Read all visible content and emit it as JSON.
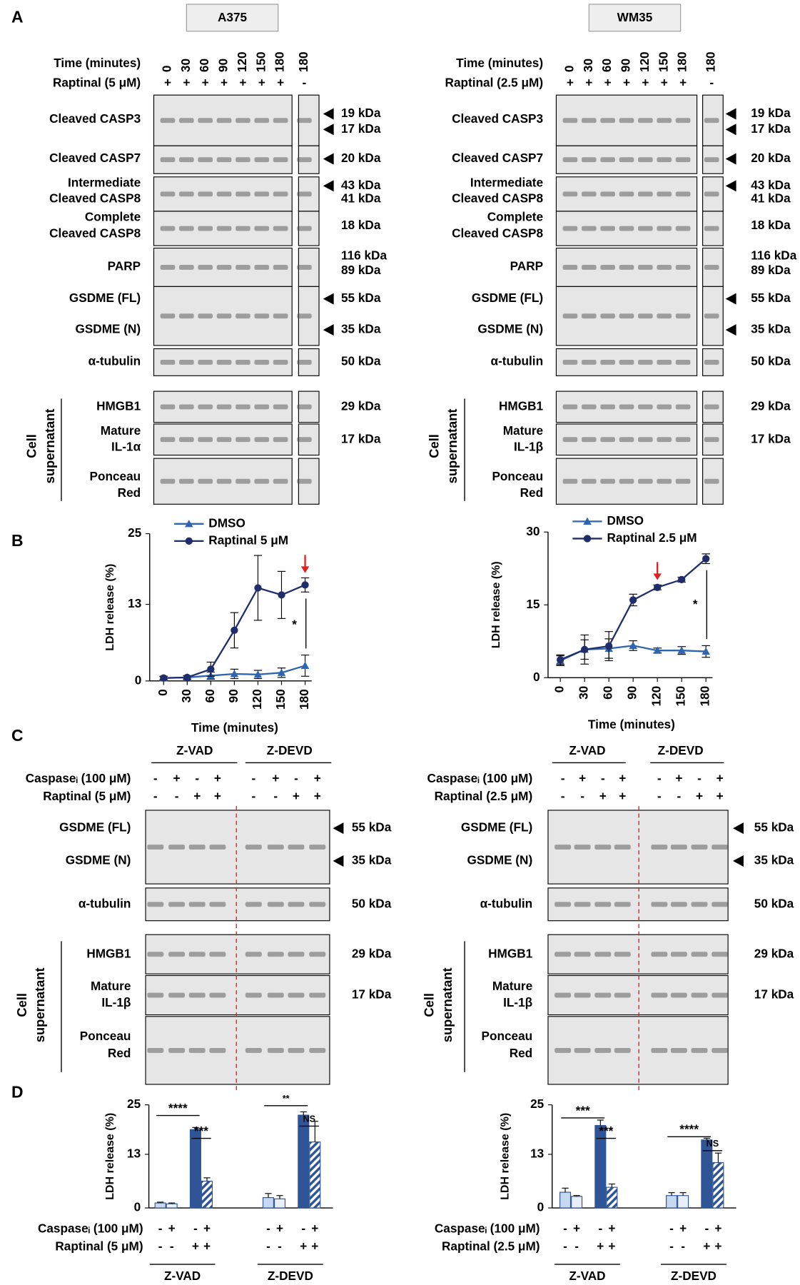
{
  "panel_labels": [
    "A",
    "B",
    "C",
    "D"
  ],
  "panel_a": [
    {
      "cell_line": "A375",
      "time_label": "Time (minutes)",
      "times": [
        "0",
        "30",
        "60",
        "90",
        "120",
        "150",
        "180",
        "180"
      ],
      "treatment_label": "Raptinal (5 μM)",
      "treatment": [
        "+",
        "+",
        "+",
        "+",
        "+",
        "+",
        "+",
        "-"
      ],
      "rows": [
        {
          "name": [
            "Cleaved CASP3"
          ],
          "kda": [
            "19 kDa",
            "17 kDa"
          ]
        },
        {
          "name": [
            "Cleaved CASP7"
          ],
          "kda": [
            "20 kDa"
          ]
        },
        {
          "name": [
            "Intermediate",
            "Cleaved CASP8"
          ],
          "kda": [
            "43 kDa",
            "41 kDa"
          ]
        },
        {
          "name": [
            "Complete",
            "Cleaved CASP8"
          ],
          "kda": [
            "18 kDa"
          ]
        },
        {
          "name": [
            "PARP"
          ],
          "kda": [
            "116 kDa",
            "89 kDa"
          ]
        },
        {
          "name": [
            "GSDME (FL)"
          ],
          "kda": [
            "55 kDa"
          ]
        },
        {
          "name": [
            "GSDME (N)"
          ],
          "kda": [
            "35 kDa"
          ]
        },
        {
          "name": [
            "α-tubulin"
          ],
          "kda": [
            "50 kDa"
          ]
        }
      ],
      "supernatant_label": [
        "Cell",
        "supernatant"
      ],
      "supernatant_rows": [
        {
          "name": [
            "HMGB1"
          ],
          "kda": [
            "29 kDa"
          ]
        },
        {
          "name": [
            "Mature",
            "IL-1α"
          ],
          "kda": [
            "17 kDa"
          ]
        },
        {
          "name": [
            "Ponceau",
            "Red"
          ]
        }
      ]
    },
    {
      "cell_line": "WM35",
      "time_label": "Time (minutes)",
      "times": [
        "0",
        "30",
        "60",
        "90",
        "120",
        "150",
        "180",
        "180"
      ],
      "treatment_label": "Raptinal (2.5 μM)",
      "treatment": [
        "+",
        "+",
        "+",
        "+",
        "+",
        "+",
        "+",
        "-"
      ],
      "rows": [
        {
          "name": [
            "Cleaved CASP3"
          ],
          "kda": [
            "19 kDa",
            "17 kDa"
          ]
        },
        {
          "name": [
            "Cleaved CASP7"
          ],
          "kda": [
            "20 kDa"
          ]
        },
        {
          "name": [
            "Intermediate",
            "Cleaved CASP8"
          ],
          "kda": [
            "43 kDa",
            "41 kDa"
          ]
        },
        {
          "name": [
            "Complete",
            "Cleaved CASP8"
          ],
          "kda": [
            "18 kDa"
          ]
        },
        {
          "name": [
            "PARP"
          ],
          "kda": [
            "116 kDa",
            "89 kDa"
          ]
        },
        {
          "name": [
            "GSDME (FL)"
          ],
          "kda": [
            "55 kDa"
          ]
        },
        {
          "name": [
            "GSDME (N)"
          ],
          "kda": [
            "35 kDa"
          ]
        },
        {
          "name": [
            "α-tubulin"
          ],
          "kda": [
            "50 kDa"
          ]
        }
      ],
      "supernatant_label": [
        "Cell",
        "supernatant"
      ],
      "supernatant_rows": [
        {
          "name": [
            "HMGB1"
          ],
          "kda": [
            "29 kDa"
          ]
        },
        {
          "name": [
            "Mature",
            "IL-1β"
          ],
          "kda": [
            "17 kDa"
          ]
        },
        {
          "name": [
            "Ponceau",
            "Red"
          ]
        }
      ]
    }
  ],
  "panel_c": [
    {
      "headers": [
        "Z-VAD",
        "Z-DEVD"
      ],
      "caspase_label": "Caspaseᵢ (100 μM)",
      "caspase": [
        "-",
        "+",
        "-",
        "+",
        "-",
        "+",
        "-",
        "+"
      ],
      "raptinal_label": "Raptinal (5 μM)",
      "raptinal": [
        "-",
        "-",
        "+",
        "+",
        "-",
        "-",
        "+",
        "+"
      ],
      "rows": [
        {
          "name": [
            "GSDME (FL)"
          ],
          "kda": [
            "55 kDa"
          ]
        },
        {
          "name": [
            "GSDME (N)"
          ],
          "kda": [
            "35 kDa"
          ]
        },
        {
          "name": [
            "α-tubulin"
          ],
          "kda": [
            "50 kDa"
          ]
        }
      ],
      "supernatant_label": [
        "Cell",
        "supernatant"
      ],
      "supernatant_rows": [
        {
          "name": [
            "HMGB1"
          ],
          "kda": [
            "29 kDa"
          ]
        },
        {
          "name": [
            "Mature",
            "IL-1β"
          ],
          "kda": [
            "17 kDa"
          ]
        },
        {
          "name": [
            "Ponceau",
            "Red"
          ]
        }
      ]
    },
    {
      "headers": [
        "Z-VAD",
        "Z-DEVD"
      ],
      "caspase_label": "Caspaseᵢ (100 μM)",
      "caspase": [
        "-",
        "+",
        "-",
        "+",
        "-",
        "+",
        "-",
        "+"
      ],
      "raptinal_label": "Raptinal (2.5 μM)",
      "raptinal": [
        "-",
        "-",
        "+",
        "+",
        "-",
        "-",
        "+",
        "+"
      ],
      "rows": [
        {
          "name": [
            "GSDME (FL)"
          ],
          "kda": [
            "55 kDa"
          ]
        },
        {
          "name": [
            "GSDME (N)"
          ],
          "kda": [
            "35 kDa"
          ]
        },
        {
          "name": [
            "α-tubulin"
          ],
          "kda": [
            "50 kDa"
          ]
        }
      ],
      "supernatant_label": [
        "Cell",
        "supernatant"
      ],
      "supernatant_rows": [
        {
          "name": [
            "HMGB1"
          ],
          "kda": [
            "29 kDa"
          ]
        },
        {
          "name": [
            "Mature",
            "IL-1β"
          ],
          "kda": [
            "17 kDa"
          ]
        },
        {
          "name": [
            "Ponceau",
            "Red"
          ]
        }
      ]
    }
  ],
  "chart_data": [
    {
      "type": "line",
      "xlabel": "Time (minutes)",
      "ylabel": "LDH release (%)",
      "x": [
        0,
        30,
        60,
        90,
        120,
        150,
        180
      ],
      "xlim": [
        0,
        180
      ],
      "xticks": [
        0,
        30,
        60,
        90,
        120,
        150,
        180
      ],
      "ylim": [
        0,
        25
      ],
      "yticks": [
        0,
        13,
        25
      ],
      "series": [
        {
          "name": "DMSO",
          "color": "#2e64b0",
          "marker": "triangle",
          "values": [
            0.5,
            0.6,
            0.9,
            1.2,
            1.1,
            1.4,
            2.6
          ],
          "errors": [
            0.3,
            0.3,
            0.6,
            0.8,
            0.7,
            0.8,
            1.8
          ]
        },
        {
          "name": "Raptinal 5 μM",
          "color": "#1f2d6b",
          "marker": "circle",
          "values": [
            0.5,
            0.6,
            2,
            8.6,
            15.8,
            14.6,
            16.3
          ],
          "errors": [
            0.3,
            0.3,
            1.2,
            3,
            5.5,
            4,
            1.2
          ]
        }
      ],
      "annotations": [
        "*"
      ]
    },
    {
      "type": "line",
      "xlabel": "Time (minutes)",
      "ylabel": "LDH release (%)",
      "x": [
        0,
        30,
        60,
        90,
        120,
        150,
        180
      ],
      "xlim": [
        0,
        180
      ],
      "xticks": [
        0,
        30,
        60,
        90,
        120,
        150,
        180
      ],
      "ylim": [
        0,
        30
      ],
      "yticks": [
        0,
        15,
        30
      ],
      "series": [
        {
          "name": "DMSO",
          "color": "#2e64b0",
          "marker": "triangle",
          "values": [
            3.5,
            5.8,
            6,
            6.6,
            5.6,
            5.6,
            5.4
          ],
          "errors": [
            1,
            2,
            2,
            1,
            0.5,
            0.8,
            1.2
          ]
        },
        {
          "name": "Raptinal 2.5 μM",
          "color": "#1f2d6b",
          "marker": "circle",
          "values": [
            3.7,
            5.8,
            6.5,
            16,
            18.6,
            20.2,
            24.5
          ],
          "errors": [
            1,
            3,
            3,
            1.2,
            0.5,
            0.5,
            1
          ]
        }
      ],
      "annotations": [
        "*"
      ]
    },
    {
      "type": "bar",
      "ylabel": "LDH release (%)",
      "ylim": [
        0,
        25
      ],
      "yticks": [
        0,
        13,
        25
      ],
      "categories": [
        "Z-VAD",
        "Z-DEVD"
      ],
      "series": [
        {
          "color": "#c6d9f0",
          "values": [
            1.2,
            2.5
          ],
          "errors": [
            0.2,
            1
          ]
        },
        {
          "color": "#e9eff8",
          "values": [
            1,
            2.2
          ],
          "errors": [
            0.2,
            0.8
          ]
        },
        {
          "color": "#2f5597",
          "values": [
            19,
            22.5
          ],
          "errors": [
            0.5,
            0.8
          ]
        },
        {
          "color": "#2f5597",
          "hatch": true,
          "values": [
            6.5,
            16
          ],
          "errors": [
            0.8,
            5
          ]
        }
      ],
      "condition_rows": [
        {
          "label": "Caspaseᵢ (100 μM)",
          "signs": [
            "-",
            "+",
            "-",
            "+",
            "-",
            "+",
            "-",
            "+"
          ]
        },
        {
          "label": "Raptinal (5 μM)",
          "signs": [
            "-",
            "-",
            "+",
            "+",
            "-",
            "-",
            "+",
            "+"
          ]
        }
      ],
      "annotations": [
        "****",
        "***",
        "**",
        "NS"
      ]
    },
    {
      "type": "bar",
      "ylabel": "LDH release (%)",
      "ylim": [
        0,
        25
      ],
      "yticks": [
        0,
        13,
        25
      ],
      "categories": [
        "Z-VAD",
        "Z-DEVD"
      ],
      "series": [
        {
          "color": "#c6d9f0",
          "values": [
            3.8,
            3
          ],
          "errors": [
            1,
            0.7
          ]
        },
        {
          "color": "#e9eff8",
          "values": [
            2.8,
            3
          ],
          "errors": [
            0.2,
            0.7
          ]
        },
        {
          "color": "#2f5597",
          "values": [
            20,
            16.5
          ],
          "errors": [
            1.3,
            0.4
          ]
        },
        {
          "color": "#2f5597",
          "hatch": true,
          "values": [
            5,
            11
          ],
          "errors": [
            0.8,
            2.3
          ]
        }
      ],
      "condition_rows": [
        {
          "label": "Caspaseᵢ (100 μM)",
          "signs": [
            "-",
            "+",
            "-",
            "+",
            "-",
            "+",
            "-",
            "+"
          ]
        },
        {
          "label": "Raptinal (2.5 μM)",
          "signs": [
            "-",
            "-",
            "+",
            "+",
            "-",
            "-",
            "+",
            "+"
          ]
        }
      ],
      "annotations": [
        "***",
        "***",
        "****",
        "NS"
      ]
    }
  ]
}
